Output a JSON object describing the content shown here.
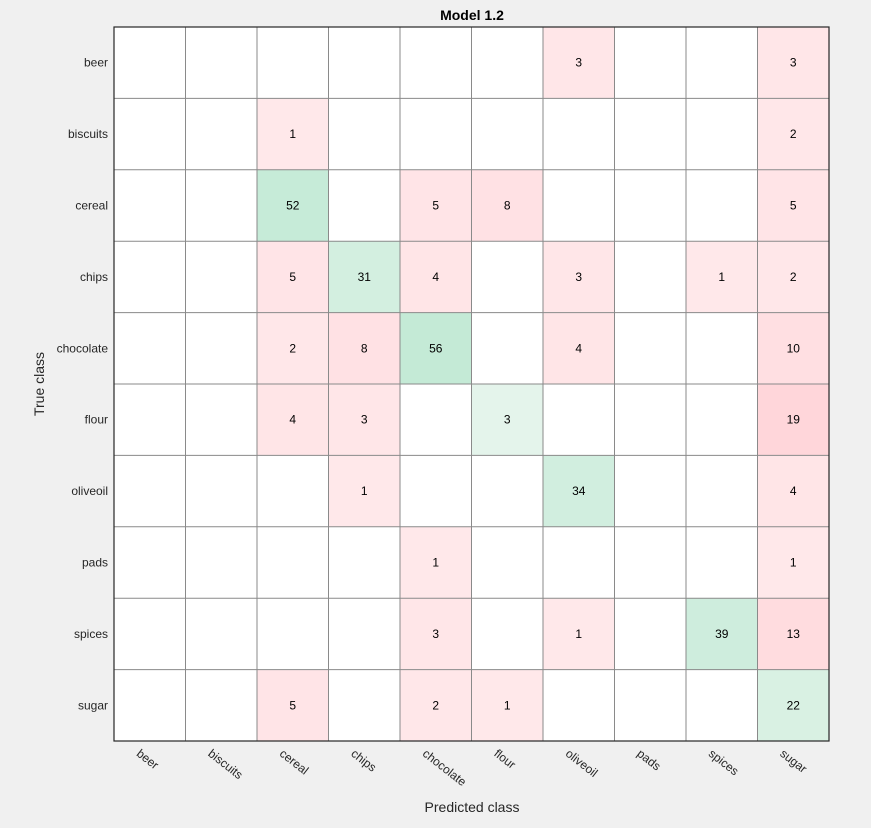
{
  "chart_data": {
    "type": "heatmap",
    "title": "Model 1.2",
    "xlabel": "Predicted class",
    "ylabel": "True class",
    "classes": [
      "beer",
      "biscuits",
      "cereal",
      "chips",
      "chocolate",
      "flour",
      "oliveoil",
      "pads",
      "spices",
      "sugar"
    ],
    "matrix": [
      [
        0,
        0,
        0,
        0,
        0,
        0,
        3,
        0,
        0,
        3
      ],
      [
        0,
        0,
        1,
        0,
        0,
        0,
        0,
        0,
        0,
        2
      ],
      [
        0,
        0,
        52,
        0,
        5,
        8,
        0,
        0,
        0,
        5
      ],
      [
        0,
        0,
        5,
        31,
        4,
        0,
        3,
        0,
        1,
        2
      ],
      [
        0,
        0,
        2,
        8,
        56,
        0,
        4,
        0,
        0,
        10
      ],
      [
        0,
        0,
        4,
        3,
        0,
        3,
        0,
        0,
        0,
        19
      ],
      [
        0,
        0,
        0,
        1,
        0,
        0,
        34,
        0,
        0,
        4
      ],
      [
        0,
        0,
        0,
        0,
        1,
        0,
        0,
        0,
        0,
        1
      ],
      [
        0,
        0,
        0,
        0,
        3,
        0,
        1,
        0,
        39,
        13
      ],
      [
        0,
        0,
        5,
        0,
        2,
        1,
        0,
        0,
        0,
        22
      ]
    ],
    "colors": {
      "correct_light": "#e6f5ec",
      "correct_dark": "#c4ead6",
      "error_light": "#ffe9eb",
      "error_dark": "#ffd6da",
      "empty": "#ffffff",
      "grid": "#8a8a8a",
      "background": "#f0f0f0"
    }
  }
}
